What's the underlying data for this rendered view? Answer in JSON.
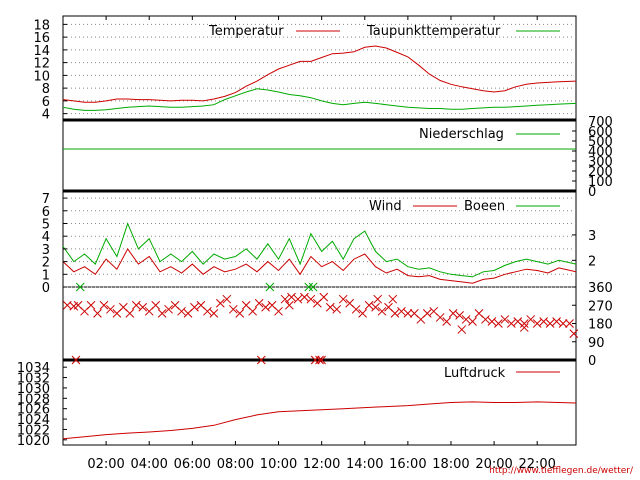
{
  "colors": {
    "red": "#cc0000",
    "green": "#00aa00",
    "black": "#000000",
    "grid": "#888888"
  },
  "credit": "http://www.tiefflegen.de/wetter/",
  "x_axis": {
    "ticks": [
      "02:00",
      "04:00",
      "06:00",
      "08:00",
      "10:00",
      "12:00",
      "14:00",
      "16:00",
      "18:00",
      "20:00",
      "22:00"
    ],
    "tick_hours": [
      2,
      4,
      6,
      8,
      10,
      12,
      14,
      16,
      18,
      20,
      22
    ],
    "range_hours": [
      0,
      23.8
    ]
  },
  "chart_data": [
    {
      "type": "line",
      "ylim": [
        3,
        19
      ],
      "left_ticks": [
        "4",
        "6",
        "8",
        "10",
        "12",
        "14",
        "16",
        "18"
      ],
      "left_tick_values": [
        4,
        6,
        8,
        10,
        12,
        14,
        16,
        18
      ],
      "grid": true,
      "series": [
        {
          "name": "Temperatur",
          "color": "#cc0000",
          "x": [
            0,
            0.5,
            1,
            1.5,
            2,
            2.5,
            3,
            3.5,
            4,
            4.5,
            5,
            5.5,
            6,
            6.5,
            7,
            7.5,
            8,
            8.5,
            9,
            9.5,
            10,
            10.5,
            11,
            11.5,
            12,
            12.5,
            13,
            13.5,
            14,
            14.5,
            15,
            15.5,
            16,
            16.5,
            17,
            17.5,
            18,
            18.5,
            19,
            19.5,
            20,
            20.5,
            21,
            21.5,
            22,
            22.5,
            23,
            23.8
          ],
          "y": [
            6.2,
            6.0,
            5.8,
            5.8,
            6.0,
            6.3,
            6.3,
            6.2,
            6.2,
            6.1,
            6.0,
            6.1,
            6.1,
            6.0,
            6.3,
            6.7,
            7.3,
            8.3,
            9.1,
            10.1,
            11.0,
            11.6,
            12.2,
            12.2,
            12.8,
            13.4,
            13.5,
            13.7,
            14.4,
            14.6,
            14.3,
            13.6,
            12.9,
            11.6,
            10.2,
            9.2,
            8.6,
            8.2,
            7.9,
            7.6,
            7.4,
            7.6,
            8.2,
            8.6,
            8.8,
            8.9,
            9.0,
            9.1
          ]
        },
        {
          "name": "Taupunkttemperatur",
          "color": "#00aa00",
          "x": [
            0,
            0.5,
            1,
            1.5,
            2,
            2.5,
            3,
            3.5,
            4,
            4.5,
            5,
            5.5,
            6,
            6.5,
            7,
            7.5,
            8,
            8.5,
            9,
            9.5,
            10,
            10.5,
            11,
            11.5,
            12,
            12.5,
            13,
            13.5,
            14,
            14.5,
            15,
            15.5,
            16,
            16.5,
            17,
            17.5,
            18,
            18.5,
            19,
            19.5,
            20,
            20.5,
            21,
            21.5,
            22,
            22.5,
            23,
            23.8
          ],
          "y": [
            5.0,
            4.7,
            4.5,
            4.5,
            4.6,
            4.8,
            5.0,
            5.1,
            5.2,
            5.1,
            5.0,
            5.0,
            5.1,
            5.2,
            5.4,
            6.2,
            6.8,
            7.4,
            7.9,
            7.7,
            7.4,
            7.0,
            6.8,
            6.5,
            6.0,
            5.6,
            5.4,
            5.6,
            5.8,
            5.6,
            5.4,
            5.2,
            5.0,
            4.9,
            4.8,
            4.8,
            4.7,
            4.7,
            4.8,
            4.9,
            5.0,
            5.0,
            5.1,
            5.2,
            5.3,
            5.4,
            5.5,
            5.6
          ]
        }
      ]
    },
    {
      "type": "line",
      "ylim": [
        0,
        700
      ],
      "right_ticks": [
        "0",
        "100",
        "200",
        "300",
        "400",
        "500",
        "600",
        "700"
      ],
      "right_tick_values": [
        0,
        100,
        200,
        300,
        400,
        500,
        600,
        700
      ],
      "series": [
        {
          "name": "Niederschlag",
          "color": "#00aa00",
          "x": [
            0,
            23.8
          ],
          "y": [
            420,
            420
          ]
        }
      ]
    },
    {
      "type": "line",
      "ylim": [
        0,
        7.4
      ],
      "left_ticks": [
        "0",
        "1",
        "2",
        "3",
        "4",
        "5",
        "6",
        "7"
      ],
      "left_tick_values": [
        0,
        1,
        2,
        3,
        4,
        5,
        6,
        7
      ],
      "right_ticks": [
        "2",
        "3"
      ],
      "right_tick_values": [
        2.1,
        4.1
      ],
      "grid": true,
      "series": [
        {
          "name": "Wind",
          "color": "#cc0000",
          "x": [
            0,
            0.5,
            1,
            1.5,
            2,
            2.5,
            3,
            3.5,
            4,
            4.5,
            5,
            5.5,
            6,
            6.5,
            7,
            7.5,
            8,
            8.5,
            9,
            9.5,
            10,
            10.5,
            11,
            11.5,
            12,
            12.5,
            13,
            13.5,
            14,
            14.5,
            15,
            15.5,
            16,
            16.5,
            17,
            17.5,
            18,
            18.5,
            19,
            19.5,
            20,
            20.5,
            21,
            21.5,
            22,
            22.5,
            23,
            23.8
          ],
          "y": [
            2.0,
            1.2,
            1.6,
            1.0,
            2.2,
            1.4,
            3.0,
            1.8,
            2.4,
            1.2,
            1.6,
            1.1,
            1.8,
            1.0,
            1.6,
            1.2,
            1.4,
            1.8,
            1.2,
            2.0,
            1.3,
            2.2,
            1.0,
            2.4,
            1.6,
            2.0,
            1.3,
            2.2,
            2.6,
            1.6,
            1.1,
            1.4,
            0.9,
            0.8,
            0.9,
            0.6,
            0.5,
            0.4,
            0.3,
            0.6,
            0.7,
            1.0,
            1.2,
            1.4,
            1.3,
            1.1,
            1.5,
            1.2
          ]
        },
        {
          "name": "Boeen",
          "color": "#00aa00",
          "x": [
            0,
            0.5,
            1,
            1.5,
            2,
            2.5,
            3,
            3.5,
            4,
            4.5,
            5,
            5.5,
            6,
            6.5,
            7,
            7.5,
            8,
            8.5,
            9,
            9.5,
            10,
            10.5,
            11,
            11.5,
            12,
            12.5,
            13,
            13.5,
            14,
            14.5,
            15,
            15.5,
            16,
            16.5,
            17,
            17.5,
            18,
            18.5,
            19,
            19.5,
            20,
            20.5,
            21,
            21.5,
            22,
            22.5,
            23,
            23.8
          ],
          "y": [
            3.2,
            2.0,
            2.6,
            1.8,
            3.8,
            2.4,
            5.0,
            3.0,
            3.8,
            2.0,
            2.6,
            2.0,
            2.8,
            1.8,
            2.6,
            2.2,
            2.4,
            3.0,
            2.2,
            3.4,
            2.2,
            3.8,
            1.8,
            4.2,
            2.8,
            3.6,
            2.2,
            3.8,
            4.4,
            2.8,
            2.0,
            2.2,
            1.6,
            1.4,
            1.5,
            1.2,
            1.0,
            0.9,
            0.8,
            1.2,
            1.3,
            1.7,
            2.0,
            2.2,
            2.0,
            1.8,
            2.1,
            1.8
          ]
        }
      ]
    },
    {
      "type": "scatter",
      "ylim": [
        0,
        360
      ],
      "right_ticks": [
        "0",
        "90",
        "180",
        "270",
        "360"
      ],
      "right_tick_values": [
        0,
        90,
        180,
        270,
        360
      ],
      "series": [
        {
          "name": "",
          "color": "#cc0000",
          "marker": "x",
          "x": [
            0.2,
            0.5,
            0.7,
            1.0,
            1.3,
            1.6,
            1.9,
            2.2,
            2.5,
            2.8,
            3.1,
            3.4,
            3.7,
            4.0,
            4.3,
            4.6,
            4.9,
            5.2,
            5.5,
            5.8,
            6.1,
            6.4,
            6.7,
            7.0,
            7.3,
            7.6,
            7.9,
            8.2,
            8.5,
            8.8,
            9.1,
            9.4,
            9.7,
            10.0,
            10.3,
            10.6,
            10.9,
            11.2,
            11.5,
            11.8,
            12.1,
            12.4,
            12.7,
            13.0,
            13.3,
            13.6,
            13.9,
            14.2,
            14.5,
            14.8,
            15.1,
            15.4,
            15.7,
            16.0,
            16.3,
            16.6,
            16.9,
            17.2,
            17.5,
            17.8,
            18.1,
            18.4,
            18.7,
            19.0,
            19.3,
            19.6,
            19.9,
            20.2,
            20.5,
            20.8,
            21.1,
            21.4,
            21.7,
            22.0,
            22.3,
            22.6,
            22.9,
            23.2,
            23.5,
            23.7,
            0.6,
            9.2,
            10.5,
            11.7,
            11.9,
            12.0,
            14.6,
            15.3,
            18.5,
            21.4
          ],
          "y": [
            270,
            265,
            270,
            240,
            270,
            230,
            270,
            250,
            230,
            260,
            230,
            270,
            260,
            240,
            270,
            230,
            250,
            270,
            240,
            230,
            260,
            270,
            240,
            230,
            280,
            300,
            250,
            230,
            270,
            240,
            280,
            260,
            270,
            240,
            300,
            310,
            300,
            310,
            300,
            280,
            310,
            260,
            250,
            300,
            280,
            250,
            230,
            270,
            260,
            240,
            260,
            230,
            240,
            230,
            230,
            200,
            230,
            240,
            210,
            190,
            230,
            220,
            200,
            190,
            230,
            200,
            190,
            180,
            200,
            180,
            190,
            180,
            200,
            180,
            190,
            180,
            190,
            180,
            180,
            130,
            0,
            0,
            270,
            0,
            0,
            0,
            300,
            300,
            150,
            160
          ]
        },
        {
          "name": "",
          "color": "#00aa00",
          "marker": "x",
          "x": [
            0.8,
            9.6,
            11.4,
            11.6
          ],
          "y": [
            360,
            360,
            360,
            360
          ]
        }
      ]
    },
    {
      "type": "line",
      "ylim": [
        1019,
        1035
      ],
      "left_ticks": [
        "1020",
        "1022",
        "1024",
        "1026",
        "1028",
        "1030",
        "1032",
        "1034"
      ],
      "left_tick_values": [
        1020,
        1022,
        1024,
        1026,
        1028,
        1030,
        1032,
        1034
      ],
      "series": [
        {
          "name": "Luftdruck",
          "color": "#cc0000",
          "x": [
            0,
            1,
            2,
            3,
            4,
            5,
            6,
            7,
            8,
            9,
            10,
            11,
            12,
            13,
            14,
            15,
            16,
            17,
            18,
            19,
            20,
            21,
            22,
            23,
            23.8
          ],
          "y": [
            1020.2,
            1020.6,
            1021.0,
            1021.3,
            1021.5,
            1021.8,
            1022.2,
            1022.8,
            1023.9,
            1024.8,
            1025.4,
            1025.6,
            1025.8,
            1026.0,
            1026.2,
            1026.4,
            1026.6,
            1026.9,
            1027.2,
            1027.3,
            1027.2,
            1027.2,
            1027.3,
            1027.2,
            1027.1
          ]
        }
      ]
    }
  ]
}
